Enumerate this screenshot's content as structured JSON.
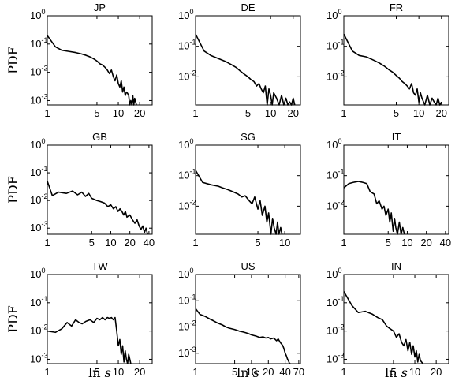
{
  "figure": {
    "ylabel": "PDF",
    "xlabel": "ln s"
  },
  "chart_data": [
    {
      "type": "line",
      "title": "JP",
      "xscale": "log",
      "yscale": "log",
      "xlim": [
        1,
        30
      ],
      "ylim": [
        0.0007,
        1
      ],
      "xticks": [
        1,
        5,
        10,
        20
      ],
      "yticks": [
        {
          "v": 1,
          "label": "10",
          "exp": "0"
        },
        {
          "v": 0.1,
          "label": "10",
          "exp": "-1"
        },
        {
          "v": 0.01,
          "label": "10",
          "exp": "-2"
        },
        {
          "v": 0.001,
          "label": "10",
          "exp": "-3"
        }
      ],
      "x": [
        1,
        1.3,
        1.6,
        2,
        2.5,
        3,
        3.5,
        4,
        4.5,
        5,
        5.5,
        6,
        6.5,
        7,
        7.5,
        8,
        8.5,
        9,
        9.5,
        10,
        10.5,
        11,
        11.5,
        12,
        12.5,
        13,
        13.5,
        14,
        14.5,
        15,
        15.5,
        16,
        16.5,
        17,
        18
      ],
      "y": [
        0.2,
        0.08,
        0.06,
        0.055,
        0.05,
        0.045,
        0.04,
        0.035,
        0.03,
        0.025,
        0.02,
        0.018,
        0.015,
        0.012,
        0.009,
        0.012,
        0.007,
        0.005,
        0.008,
        0.004,
        0.003,
        0.005,
        0.002,
        0.003,
        0.0015,
        0.002,
        0.0018,
        0.0015,
        0.0007,
        0.001,
        0.0007,
        0.0015,
        0.0007,
        0.0012,
        0.0007
      ]
    },
    {
      "type": "line",
      "title": "DE",
      "xscale": "log",
      "yscale": "log",
      "xlim": [
        1,
        25
      ],
      "ylim": [
        0.0012,
        1
      ],
      "xticks": [
        1,
        5,
        10,
        20
      ],
      "yticks": [
        {
          "v": 1,
          "label": "10",
          "exp": "0"
        },
        {
          "v": 0.1,
          "label": "10",
          "exp": "-1"
        },
        {
          "v": 0.01,
          "label": "10",
          "exp": "-2"
        }
      ],
      "x": [
        1,
        1.3,
        1.6,
        2,
        2.5,
        3,
        3.5,
        4,
        4.5,
        5,
        5.5,
        6,
        6.5,
        7,
        7.5,
        8,
        8.5,
        9,
        9.5,
        10,
        10.5,
        11,
        12,
        13,
        14,
        15,
        16,
        17,
        18,
        19,
        20,
        21
      ],
      "y": [
        0.25,
        0.07,
        0.05,
        0.04,
        0.032,
        0.025,
        0.02,
        0.015,
        0.012,
        0.01,
        0.008,
        0.007,
        0.005,
        0.006,
        0.004,
        0.003,
        0.005,
        0.0012,
        0.004,
        0.0025,
        0.0012,
        0.003,
        0.002,
        0.0012,
        0.0025,
        0.0012,
        0.002,
        0.0012,
        0.0015,
        0.0012,
        0.002,
        0.0012
      ]
    },
    {
      "type": "line",
      "title": "FR",
      "xscale": "log",
      "yscale": "log",
      "xlim": [
        1,
        25
      ],
      "ylim": [
        0.0012,
        1
      ],
      "xticks": [
        1,
        5,
        10,
        20
      ],
      "yticks": [
        {
          "v": 1,
          "label": "10",
          "exp": "0"
        },
        {
          "v": 0.1,
          "label": "10",
          "exp": "-1"
        },
        {
          "v": 0.01,
          "label": "10",
          "exp": "-2"
        }
      ],
      "x": [
        1,
        1.3,
        1.6,
        2,
        2.5,
        3,
        3.5,
        4,
        4.5,
        5,
        5.5,
        6,
        6.5,
        7,
        7.5,
        8,
        8.5,
        9,
        9.5,
        10,
        10.5,
        11,
        12,
        13,
        14,
        15,
        16,
        17,
        18,
        19,
        20
      ],
      "y": [
        0.25,
        0.07,
        0.05,
        0.045,
        0.035,
        0.028,
        0.022,
        0.017,
        0.014,
        0.011,
        0.009,
        0.007,
        0.006,
        0.005,
        0.004,
        0.006,
        0.003,
        0.0025,
        0.004,
        0.0015,
        0.003,
        0.002,
        0.0012,
        0.0025,
        0.0012,
        0.002,
        0.0015,
        0.0012,
        0.002,
        0.0012,
        0.0015
      ]
    },
    {
      "type": "line",
      "title": "GB",
      "xscale": "log",
      "yscale": "log",
      "xlim": [
        1,
        45
      ],
      "ylim": [
        0.0006,
        1
      ],
      "xticks": [
        1,
        5,
        10,
        20,
        40
      ],
      "yticks": [
        {
          "v": 1,
          "label": "10",
          "exp": "0"
        },
        {
          "v": 0.1,
          "label": "10",
          "exp": "-1"
        },
        {
          "v": 0.01,
          "label": "10",
          "exp": "-2"
        },
        {
          "v": 0.001,
          "label": "10",
          "exp": "-3"
        }
      ],
      "x": [
        1,
        1.2,
        1.5,
        2,
        2.5,
        3,
        3.5,
        4,
        4.5,
        5,
        6,
        7,
        8,
        9,
        10,
        11,
        12,
        13,
        14,
        15,
        16,
        17,
        18,
        20,
        22,
        24,
        26,
        28,
        30,
        32,
        34,
        36,
        38
      ],
      "y": [
        0.05,
        0.015,
        0.02,
        0.018,
        0.022,
        0.016,
        0.02,
        0.014,
        0.018,
        0.012,
        0.01,
        0.009,
        0.008,
        0.006,
        0.007,
        0.005,
        0.006,
        0.004,
        0.005,
        0.004,
        0.003,
        0.004,
        0.0025,
        0.003,
        0.002,
        0.0015,
        0.002,
        0.0012,
        0.0009,
        0.0012,
        0.0007,
        0.001,
        0.0006
      ]
    },
    {
      "type": "line",
      "title": "SG",
      "xscale": "log",
      "yscale": "log",
      "xlim": [
        1,
        15
      ],
      "ylim": [
        0.0012,
        1
      ],
      "xticks": [
        1,
        5,
        10
      ],
      "yticks": [
        {
          "v": 1,
          "label": "10",
          "exp": "0"
        },
        {
          "v": 0.1,
          "label": "10",
          "exp": "-1"
        },
        {
          "v": 0.01,
          "label": "10",
          "exp": "-2"
        }
      ],
      "x": [
        1,
        1.2,
        1.5,
        1.8,
        2,
        2.3,
        2.6,
        3,
        3.3,
        3.6,
        4,
        4.3,
        4.6,
        5,
        5.3,
        5.6,
        6,
        6.3,
        6.6,
        7,
        7.3,
        7.6,
        8,
        8.3,
        8.6,
        9,
        9.3
      ],
      "y": [
        0.15,
        0.06,
        0.05,
        0.045,
        0.04,
        0.035,
        0.03,
        0.025,
        0.02,
        0.022,
        0.015,
        0.012,
        0.02,
        0.008,
        0.015,
        0.005,
        0.01,
        0.003,
        0.006,
        0.0012,
        0.004,
        0.002,
        0.0012,
        0.003,
        0.0012,
        0.002,
        0.0012
      ]
    },
    {
      "type": "line",
      "title": "IT",
      "xscale": "log",
      "yscale": "log",
      "xlim": [
        1,
        45
      ],
      "ylim": [
        0.0012,
        1
      ],
      "xticks": [
        1,
        5,
        10,
        20,
        40
      ],
      "yticks": [
        {
          "v": 1,
          "label": "10",
          "exp": "0"
        },
        {
          "v": 0.1,
          "label": "10",
          "exp": "-1"
        },
        {
          "v": 0.01,
          "label": "10",
          "exp": "-2"
        }
      ],
      "x": [
        1,
        1.2,
        1.4,
        1.7,
        2,
        2.3,
        2.6,
        3,
        3.3,
        3.6,
        4,
        4.3,
        4.6,
        5,
        5.3,
        5.6,
        6,
        6.3,
        6.6,
        7,
        7.5,
        8,
        8.5,
        9
      ],
      "y": [
        0.04,
        0.055,
        0.06,
        0.065,
        0.06,
        0.055,
        0.03,
        0.025,
        0.012,
        0.015,
        0.008,
        0.01,
        0.005,
        0.008,
        0.003,
        0.006,
        0.0015,
        0.004,
        0.002,
        0.0012,
        0.003,
        0.0012,
        0.002,
        0.0012
      ]
    },
    {
      "type": "line",
      "title": "TW",
      "xscale": "log",
      "yscale": "log",
      "xlim": [
        1,
        30
      ],
      "ylim": [
        0.0007,
        1
      ],
      "xticks": [
        1,
        5,
        10,
        20
      ],
      "yticks": [
        {
          "v": 1,
          "label": "10",
          "exp": "0"
        },
        {
          "v": 0.1,
          "label": "10",
          "exp": "-1"
        },
        {
          "v": 0.01,
          "label": "10",
          "exp": "-2"
        },
        {
          "v": 0.001,
          "label": "10",
          "exp": "-3"
        }
      ],
      "x": [
        1,
        1.3,
        1.6,
        1.9,
        2.2,
        2.5,
        2.8,
        3.1,
        3.5,
        4,
        4.5,
        5,
        5.5,
        6,
        6.5,
        7,
        7.5,
        8,
        8.5,
        9,
        9.5,
        10,
        10.5,
        11,
        11.5,
        12,
        12.5,
        13,
        13.5,
        14,
        15
      ],
      "y": [
        0.01,
        0.009,
        0.012,
        0.02,
        0.015,
        0.025,
        0.02,
        0.018,
        0.022,
        0.025,
        0.02,
        0.028,
        0.025,
        0.03,
        0.025,
        0.03,
        0.028,
        0.03,
        0.025,
        0.03,
        0.01,
        0.003,
        0.005,
        0.0015,
        0.003,
        0.0008,
        0.002,
        0.001,
        0.0007,
        0.0015,
        0.0007
      ]
    },
    {
      "type": "line",
      "title": "US",
      "xscale": "log",
      "yscale": "log",
      "xlim": [
        1,
        75
      ],
      "ylim": [
        0.0004,
        1
      ],
      "xticks": [
        1,
        5,
        10,
        20,
        40,
        70
      ],
      "yticks": [
        {
          "v": 1,
          "label": "10",
          "exp": "0"
        },
        {
          "v": 0.1,
          "label": "10",
          "exp": "-1"
        },
        {
          "v": 0.01,
          "label": "10",
          "exp": "-2"
        },
        {
          "v": 0.001,
          "label": "10",
          "exp": "-3"
        }
      ],
      "x": [
        1,
        1.2,
        1.5,
        1.8,
        2,
        2.5,
        3,
        3.5,
        4,
        5,
        6,
        7,
        8,
        9,
        10,
        12,
        14,
        16,
        18,
        20,
        22,
        25,
        28,
        30,
        33,
        36,
        38,
        40,
        42,
        44,
        46,
        48,
        50
      ],
      "y": [
        0.05,
        0.03,
        0.025,
        0.02,
        0.018,
        0.014,
        0.012,
        0.01,
        0.009,
        0.008,
        0.007,
        0.0065,
        0.006,
        0.0055,
        0.005,
        0.0045,
        0.004,
        0.0042,
        0.0038,
        0.004,
        0.0035,
        0.0038,
        0.003,
        0.0035,
        0.0025,
        0.002,
        0.0015,
        0.001,
        0.0008,
        0.0006,
        0.0005,
        0.0004,
        0.0004
      ]
    },
    {
      "type": "line",
      "title": "IN",
      "xscale": "log",
      "yscale": "log",
      "xlim": [
        1,
        30
      ],
      "ylim": [
        0.0007,
        1
      ],
      "xticks": [
        1,
        5,
        10,
        20
      ],
      "yticks": [
        {
          "v": 1,
          "label": "10",
          "exp": "0"
        },
        {
          "v": 0.1,
          "label": "10",
          "exp": "-1"
        },
        {
          "v": 0.01,
          "label": "10",
          "exp": "-2"
        },
        {
          "v": 0.001,
          "label": "10",
          "exp": "-3"
        }
      ],
      "x": [
        1,
        1.3,
        1.6,
        2,
        2.5,
        3,
        3.5,
        4,
        4.5,
        5,
        5.5,
        6,
        6.5,
        7,
        7.5,
        8,
        8.5,
        9,
        9.5,
        10,
        10.5,
        11,
        11.5,
        12,
        13
      ],
      "y": [
        0.25,
        0.08,
        0.045,
        0.05,
        0.04,
        0.03,
        0.025,
        0.015,
        0.012,
        0.01,
        0.006,
        0.008,
        0.004,
        0.003,
        0.005,
        0.002,
        0.004,
        0.0015,
        0.003,
        0.0012,
        0.002,
        0.0008,
        0.0015,
        0.0009,
        0.0007
      ]
    }
  ]
}
